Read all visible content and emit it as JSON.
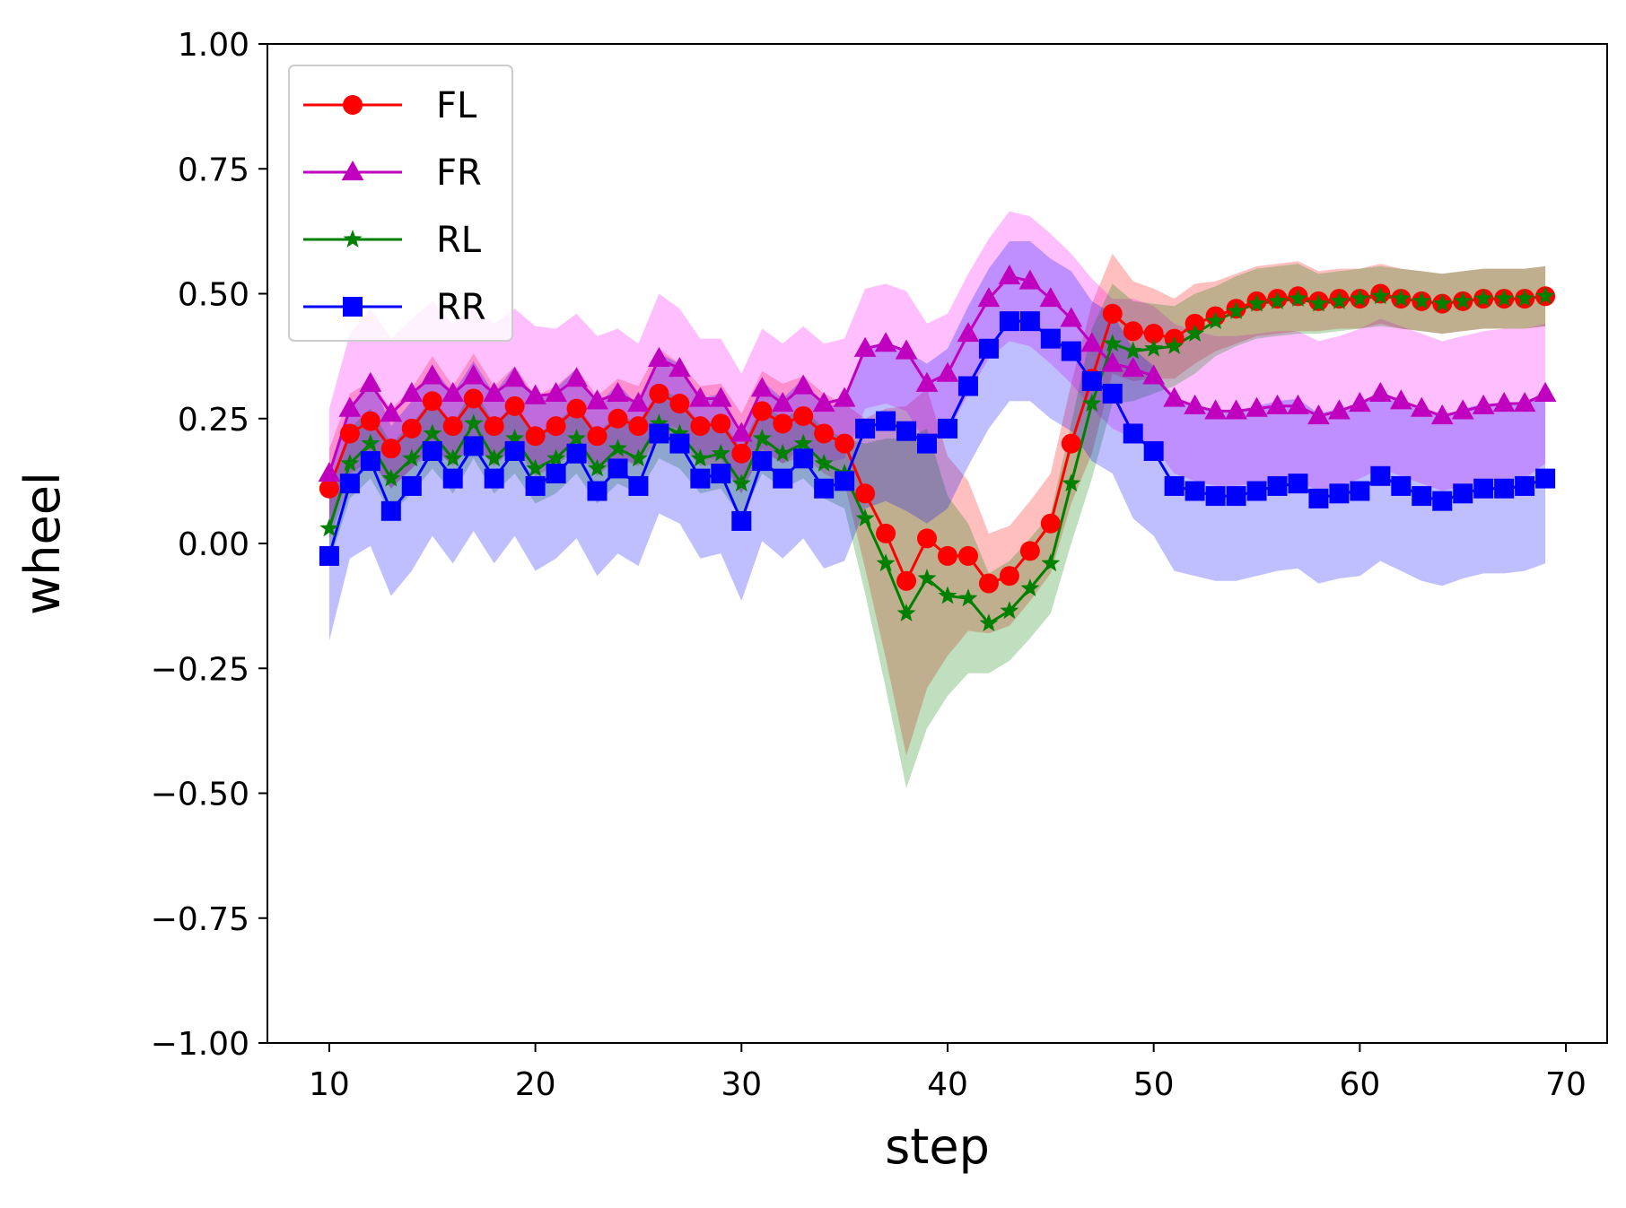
{
  "chart_data": {
    "type": "line",
    "title": "",
    "xlabel": "step",
    "ylabel": "wheel",
    "xlim": [
      7,
      72
    ],
    "ylim": [
      -1.0,
      1.0
    ],
    "x_ticks": [
      10,
      20,
      30,
      40,
      50,
      60,
      70
    ],
    "y_ticks": [
      -1.0,
      -0.75,
      -0.5,
      -0.25,
      0.0,
      0.25,
      0.5,
      0.75,
      1.0
    ],
    "x_tick_labels": [
      "10",
      "20",
      "30",
      "40",
      "50",
      "60",
      "70"
    ],
    "y_tick_labels": [
      "−1.00",
      "−0.75",
      "−0.50",
      "−0.25",
      "0.00",
      "0.25",
      "0.50",
      "0.75",
      "1.00"
    ],
    "grid": false,
    "legend_position": "upper-left",
    "x": [
      10,
      11,
      12,
      13,
      14,
      15,
      16,
      17,
      18,
      19,
      20,
      21,
      22,
      23,
      24,
      25,
      26,
      27,
      28,
      29,
      30,
      31,
      32,
      33,
      34,
      35,
      36,
      37,
      38,
      39,
      40,
      41,
      42,
      43,
      44,
      45,
      46,
      47,
      48,
      49,
      50,
      51,
      52,
      53,
      54,
      55,
      56,
      57,
      58,
      59,
      60,
      61,
      62,
      63,
      64,
      65,
      66,
      67,
      68,
      69
    ],
    "series": [
      {
        "name": "FL",
        "color": "#ff0000",
        "marker": "circle",
        "values": [
          0.11,
          0.22,
          0.245,
          0.19,
          0.23,
          0.285,
          0.235,
          0.29,
          0.235,
          0.275,
          0.215,
          0.235,
          0.27,
          0.215,
          0.25,
          0.235,
          0.3,
          0.28,
          0.235,
          0.24,
          0.18,
          0.265,
          0.24,
          0.255,
          0.22,
          0.2,
          0.1,
          0.02,
          -0.075,
          0.01,
          -0.025,
          -0.025,
          -0.08,
          -0.065,
          -0.015,
          0.04,
          0.2,
          0.33,
          0.46,
          0.425,
          0.42,
          0.41,
          0.44,
          0.455,
          0.47,
          0.485,
          0.49,
          0.495,
          0.485,
          0.49,
          0.49,
          0.5,
          0.49,
          0.485,
          0.48,
          0.485,
          0.49,
          0.49,
          0.49,
          0.495
        ],
        "band": [
          0.08,
          0.08,
          0.08,
          0.08,
          0.08,
          0.09,
          0.08,
          0.09,
          0.08,
          0.08,
          0.08,
          0.08,
          0.08,
          0.08,
          0.08,
          0.08,
          0.09,
          0.08,
          0.08,
          0.08,
          0.08,
          0.08,
          0.08,
          0.08,
          0.08,
          0.08,
          0.15,
          0.25,
          0.35,
          0.3,
          0.2,
          0.15,
          0.1,
          0.1,
          0.1,
          0.1,
          0.12,
          0.15,
          0.12,
          0.1,
          0.09,
          0.08,
          0.08,
          0.07,
          0.07,
          0.07,
          0.07,
          0.07,
          0.06,
          0.06,
          0.06,
          0.06,
          0.06,
          0.06,
          0.06,
          0.06,
          0.06,
          0.06,
          0.06,
          0.06
        ]
      },
      {
        "name": "FR",
        "color": "#bf00bf",
        "marker": "triangle",
        "values": [
          0.14,
          0.27,
          0.32,
          0.26,
          0.3,
          0.335,
          0.3,
          0.335,
          0.3,
          0.33,
          0.295,
          0.3,
          0.33,
          0.285,
          0.3,
          0.28,
          0.37,
          0.35,
          0.29,
          0.29,
          0.22,
          0.31,
          0.28,
          0.315,
          0.28,
          0.29,
          0.39,
          0.4,
          0.385,
          0.32,
          0.34,
          0.42,
          0.49,
          0.535,
          0.525,
          0.49,
          0.45,
          0.4,
          0.36,
          0.35,
          0.335,
          0.29,
          0.275,
          0.265,
          0.265,
          0.27,
          0.275,
          0.275,
          0.255,
          0.265,
          0.28,
          0.3,
          0.285,
          0.27,
          0.255,
          0.265,
          0.275,
          0.28,
          0.28,
          0.3
        ],
        "band": [
          0.13,
          0.15,
          0.15,
          0.15,
          0.15,
          0.15,
          0.14,
          0.14,
          0.14,
          0.14,
          0.14,
          0.13,
          0.13,
          0.13,
          0.13,
          0.12,
          0.13,
          0.12,
          0.12,
          0.12,
          0.12,
          0.12,
          0.12,
          0.12,
          0.12,
          0.12,
          0.12,
          0.12,
          0.12,
          0.12,
          0.12,
          0.12,
          0.12,
          0.13,
          0.13,
          0.13,
          0.13,
          0.13,
          0.13,
          0.14,
          0.14,
          0.15,
          0.15,
          0.15,
          0.15,
          0.15,
          0.15,
          0.15,
          0.15,
          0.15,
          0.15,
          0.15,
          0.15,
          0.15,
          0.15,
          0.15,
          0.15,
          0.15,
          0.15,
          0.14
        ]
      },
      {
        "name": "RL",
        "color": "#008000",
        "marker": "star",
        "values": [
          0.03,
          0.16,
          0.2,
          0.13,
          0.17,
          0.22,
          0.17,
          0.24,
          0.17,
          0.21,
          0.15,
          0.17,
          0.21,
          0.15,
          0.19,
          0.17,
          0.24,
          0.22,
          0.17,
          0.18,
          0.12,
          0.21,
          0.18,
          0.2,
          0.16,
          0.14,
          0.05,
          -0.04,
          -0.14,
          -0.07,
          -0.105,
          -0.11,
          -0.16,
          -0.135,
          -0.09,
          -0.04,
          0.12,
          0.28,
          0.4,
          0.385,
          0.39,
          0.395,
          0.42,
          0.445,
          0.465,
          0.48,
          0.485,
          0.49,
          0.48,
          0.485,
          0.49,
          0.495,
          0.49,
          0.485,
          0.48,
          0.485,
          0.49,
          0.49,
          0.49,
          0.495
        ],
        "band": [
          0.07,
          0.07,
          0.07,
          0.07,
          0.07,
          0.07,
          0.07,
          0.07,
          0.07,
          0.07,
          0.07,
          0.07,
          0.07,
          0.07,
          0.07,
          0.07,
          0.07,
          0.07,
          0.07,
          0.07,
          0.07,
          0.07,
          0.07,
          0.07,
          0.07,
          0.07,
          0.15,
          0.25,
          0.35,
          0.3,
          0.2,
          0.15,
          0.1,
          0.1,
          0.1,
          0.1,
          0.12,
          0.15,
          0.12,
          0.1,
          0.09,
          0.08,
          0.08,
          0.07,
          0.07,
          0.07,
          0.07,
          0.07,
          0.06,
          0.06,
          0.06,
          0.06,
          0.06,
          0.06,
          0.06,
          0.06,
          0.06,
          0.06,
          0.06,
          0.06
        ]
      },
      {
        "name": "RR",
        "color": "#0000ff",
        "marker": "square",
        "values": [
          -0.025,
          0.12,
          0.165,
          0.065,
          0.115,
          0.185,
          0.13,
          0.195,
          0.13,
          0.185,
          0.115,
          0.14,
          0.18,
          0.105,
          0.15,
          0.115,
          0.22,
          0.2,
          0.13,
          0.14,
          0.045,
          0.165,
          0.13,
          0.17,
          0.11,
          0.125,
          0.23,
          0.245,
          0.225,
          0.2,
          0.23,
          0.315,
          0.39,
          0.445,
          0.445,
          0.41,
          0.385,
          0.325,
          0.3,
          0.22,
          0.185,
          0.115,
          0.105,
          0.095,
          0.095,
          0.105,
          0.115,
          0.12,
          0.09,
          0.1,
          0.105,
          0.135,
          0.115,
          0.095,
          0.085,
          0.1,
          0.11,
          0.11,
          0.115,
          0.13
        ],
        "band": [
          0.17,
          0.15,
          0.17,
          0.17,
          0.17,
          0.17,
          0.17,
          0.17,
          0.17,
          0.17,
          0.17,
          0.17,
          0.17,
          0.17,
          0.17,
          0.16,
          0.16,
          0.16,
          0.16,
          0.16,
          0.16,
          0.16,
          0.16,
          0.16,
          0.16,
          0.16,
          0.16,
          0.16,
          0.16,
          0.16,
          0.16,
          0.16,
          0.16,
          0.16,
          0.16,
          0.16,
          0.16,
          0.16,
          0.16,
          0.17,
          0.17,
          0.17,
          0.17,
          0.17,
          0.17,
          0.17,
          0.17,
          0.17,
          0.17,
          0.17,
          0.17,
          0.17,
          0.17,
          0.17,
          0.17,
          0.17,
          0.17,
          0.17,
          0.17,
          0.17
        ]
      }
    ]
  }
}
